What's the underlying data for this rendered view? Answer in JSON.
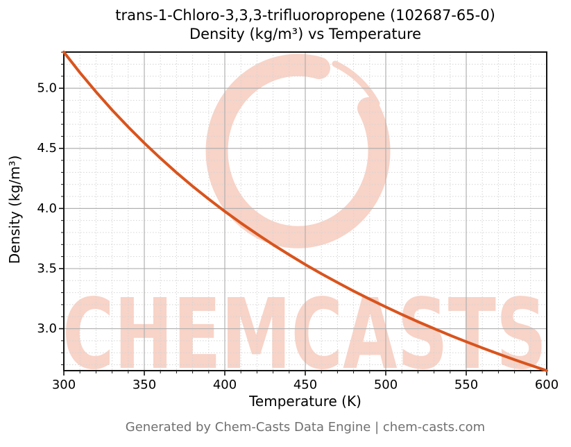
{
  "chart_data": {
    "type": "line",
    "title": "trans-1-Chloro-3,3,3-trifluoropropene (102687-65-0)\nDensity (kg/m³) vs Temperature",
    "title_lines": [
      "trans-1-Chloro-3,3,3-trifluoropropene (102687-65-0)",
      "Density (kg/m³) vs Temperature"
    ],
    "xlabel": "Temperature (K)",
    "ylabel": "Density (kg/m³)",
    "xlim": [
      300,
      600
    ],
    "ylim": [
      2.651,
      5.301
    ],
    "x_major_ticks": [
      300,
      350,
      400,
      450,
      500,
      550,
      600
    ],
    "x_tick_labels": [
      "300",
      "350",
      "400",
      "450",
      "500",
      "550",
      "600"
    ],
    "x_minor_step": 10,
    "y_major_ticks": [
      3.0,
      3.5,
      4.0,
      4.5,
      5.0
    ],
    "y_tick_labels": [
      "3.0",
      "3.5",
      "4.0",
      "4.5",
      "5.0"
    ],
    "y_minor_step": 0.1,
    "grid": true,
    "legend": false,
    "series": [
      {
        "name": "Density (kg/m³)",
        "color": "#d9541d",
        "x": [
          300,
          310,
          320,
          330,
          340,
          350,
          360,
          370,
          380,
          390,
          400,
          410,
          420,
          430,
          440,
          450,
          460,
          470,
          480,
          490,
          500,
          510,
          520,
          530,
          540,
          550,
          560,
          570,
          580,
          590,
          600
        ],
        "y": [
          5.301,
          5.13,
          4.97,
          4.819,
          4.678,
          4.544,
          4.418,
          4.298,
          4.185,
          4.078,
          3.976,
          3.879,
          3.787,
          3.699,
          3.615,
          3.534,
          3.457,
          3.384,
          3.313,
          3.246,
          3.181,
          3.118,
          3.058,
          3.001,
          2.945,
          2.892,
          2.84,
          2.79,
          2.742,
          2.696,
          2.651
        ]
      }
    ]
  },
  "watermark": {
    "text": "CHEMCASTS",
    "color": "#f8d3c7"
  },
  "footer": {
    "text": "Generated by Chem-Casts Data Engine | chem-casts.com"
  },
  "colors": {
    "curve": "#d9541d",
    "major_grid": "#b0b0b0",
    "minor_grid": "#d4d4d4",
    "spine": "#111111",
    "tick": "#111111",
    "title_text": "#000000",
    "footer_text": "#707070",
    "watermark": "#f8d3c7",
    "background": "#ffffff"
  }
}
